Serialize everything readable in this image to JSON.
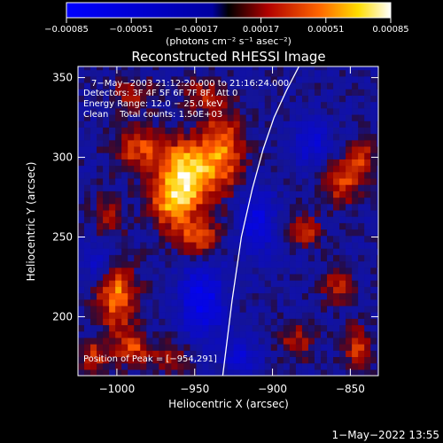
{
  "chart_data": {
    "type": "heatmap",
    "title": "Reconstructed RHESSI Image",
    "xlabel": "Heliocentric X (arcsec)",
    "ylabel": "Heliocentric Y (arcsec)",
    "xlim": [
      -1025,
      -832
    ],
    "ylim": [
      163,
      357
    ],
    "xticks": [
      -1000,
      -950,
      -900,
      -850
    ],
    "xtick_labels": [
      "−1000",
      "−950",
      "−900",
      "−850"
    ],
    "yticks": [
      200,
      250,
      300,
      350
    ],
    "ytick_labels": [
      "200",
      "250",
      "300",
      "350"
    ],
    "colorbar": {
      "range": [
        -0.00085,
        0.00085
      ],
      "ticks": [
        -0.00085,
        -0.00051,
        -0.00017,
        0.00017,
        0.00051,
        0.00085
      ],
      "tick_labels": [
        "−0.00085",
        "−0.00051",
        "−0.00017",
        "0.00017",
        "0.00051",
        "0.00085"
      ],
      "unit_label": "(photons cm⁻² s⁻¹ asec⁻²)"
    },
    "annotations": [
      "7−May−2003 21:12:20.000 to 21:16:24.000",
      "Detectors: 3F 4F 5F 6F 7F 8F, Att 0",
      "Energy Range: 12.0 − 25.0 keV",
      "Clean    Total counts: 1.50E+03"
    ],
    "peak_label": "Position of Peak = [−954,291]",
    "peak_position": [
      -954,
      291
    ],
    "limb_curve": [
      [
        -932,
        163
      ],
      [
        -926,
        210
      ],
      [
        -920,
        250
      ],
      [
        -913,
        280
      ],
      [
        -906,
        305
      ],
      [
        -899,
        325
      ],
      [
        -891,
        342
      ],
      [
        -883,
        357
      ]
    ],
    "sources": [
      {
        "x": -955,
        "y": 290,
        "amp": 0.00085,
        "sx": 12,
        "sy": 14
      },
      {
        "x": -965,
        "y": 270,
        "amp": 0.00055,
        "sx": 10,
        "sy": 10
      },
      {
        "x": -932,
        "y": 305,
        "amp": 0.00055,
        "sx": 10,
        "sy": 18
      },
      {
        "x": -985,
        "y": 305,
        "amp": 0.00045,
        "sx": 12,
        "sy": 10
      },
      {
        "x": -948,
        "y": 250,
        "amp": 0.0005,
        "sx": 10,
        "sy": 8
      },
      {
        "x": -1000,
        "y": 215,
        "amp": 0.0006,
        "sx": 9,
        "sy": 16
      },
      {
        "x": -990,
        "y": 180,
        "amp": 0.00045,
        "sx": 8,
        "sy": 8
      },
      {
        "x": -1015,
        "y": 175,
        "amp": 0.0004,
        "sx": 7,
        "sy": 8
      },
      {
        "x": -965,
        "y": 175,
        "amp": 0.00035,
        "sx": 8,
        "sy": 7
      },
      {
        "x": -855,
        "y": 285,
        "amp": 0.00045,
        "sx": 8,
        "sy": 10
      },
      {
        "x": -842,
        "y": 300,
        "amp": 0.0004,
        "sx": 6,
        "sy": 8
      },
      {
        "x": -880,
        "y": 255,
        "amp": 0.00045,
        "sx": 7,
        "sy": 7
      },
      {
        "x": -858,
        "y": 220,
        "amp": 0.00035,
        "sx": 8,
        "sy": 8
      },
      {
        "x": -885,
        "y": 185,
        "amp": 0.00035,
        "sx": 8,
        "sy": 8
      },
      {
        "x": -845,
        "y": 180,
        "amp": 0.0004,
        "sx": 6,
        "sy": 10
      },
      {
        "x": -990,
        "y": 340,
        "amp": 0.00035,
        "sx": 9,
        "sy": 7
      },
      {
        "x": -945,
        "y": 340,
        "amp": 0.0003,
        "sx": 9,
        "sy": 7
      },
      {
        "x": -1005,
        "y": 265,
        "amp": 0.0003,
        "sx": 7,
        "sy": 9
      },
      {
        "x": -945,
        "y": 210,
        "amp": -0.0006,
        "sx": 10,
        "sy": 16
      },
      {
        "x": -910,
        "y": 260,
        "amp": -0.0005,
        "sx": 8,
        "sy": 14
      },
      {
        "x": -1010,
        "y": 235,
        "amp": -0.0004,
        "sx": 7,
        "sy": 8
      },
      {
        "x": -875,
        "y": 310,
        "amp": -0.0004,
        "sx": 8,
        "sy": 10
      },
      {
        "x": -920,
        "y": 175,
        "amp": -0.0004,
        "sx": 8,
        "sy": 7
      }
    ]
  },
  "footer": {
    "date": "1−May−2022 13:55"
  }
}
